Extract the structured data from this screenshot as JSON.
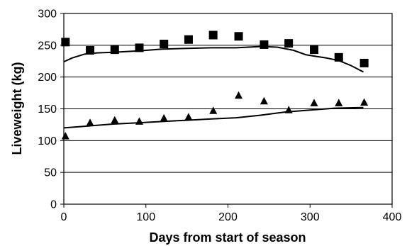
{
  "chart_data": {
    "type": "scatter",
    "title": "",
    "xlabel": "Days from start of season",
    "ylabel": "Liveweight (kg)",
    "xlim": [
      0,
      400
    ],
    "ylim": [
      0,
      300
    ],
    "x_ticks": [
      "0",
      "100",
      "200",
      "300",
      "400"
    ],
    "y_ticks": [
      "0",
      "50",
      "100",
      "150",
      "200",
      "250",
      "300"
    ],
    "grid": "horizontal",
    "legend": "none",
    "series": [
      {
        "marker": "square",
        "x": [
          2,
          32,
          62,
          92,
          122,
          152,
          182,
          213,
          244,
          274,
          305,
          335,
          366
        ],
        "y": [
          255,
          242,
          243,
          246,
          252,
          259,
          266,
          264,
          251,
          253,
          243,
          231,
          222
        ]
      },
      {
        "marker": "triangle",
        "x": [
          2,
          32,
          62,
          92,
          122,
          152,
          182,
          213,
          244,
          274,
          305,
          335,
          366
        ],
        "y": [
          107,
          128,
          132,
          130,
          135,
          137,
          147,
          171,
          162,
          148,
          159,
          159,
          160
        ]
      }
    ],
    "fitted_lines": [
      {
        "x": [
          0,
          10,
          25,
          40,
          60,
          90,
          120,
          150,
          180,
          210,
          240,
          260,
          280,
          295,
          305,
          320,
          335,
          350,
          365
        ],
        "y": [
          224,
          230,
          236,
          238,
          239,
          241,
          244,
          245,
          246,
          246,
          248,
          247,
          242,
          235,
          233,
          230,
          226,
          218,
          208
        ]
      },
      {
        "x": [
          0,
          30,
          60,
          90,
          120,
          150,
          180,
          210,
          240,
          270,
          300,
          330,
          365
        ],
        "y": [
          120,
          123,
          126,
          128,
          130,
          132,
          134,
          136,
          140,
          145,
          148,
          151,
          152
        ]
      }
    ]
  }
}
